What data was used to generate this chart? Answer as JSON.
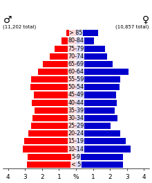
{
  "age_groups": [
    "< 5",
    "5-9",
    "10-14",
    "15-19",
    "20-24",
    "25-29",
    "30-34",
    "35-39",
    "40-44",
    "45-49",
    "50-54",
    "55-59",
    "60-64",
    "65-69",
    "70-74",
    "75-79",
    "80-84",
    "> 85"
  ],
  "male_pct": [
    2.9,
    2.85,
    3.15,
    3.05,
    2.8,
    2.65,
    2.55,
    2.45,
    2.6,
    2.5,
    2.7,
    2.65,
    2.25,
    1.95,
    1.55,
    1.25,
    0.85,
    0.55
  ],
  "female_pct": [
    2.75,
    2.75,
    3.2,
    2.95,
    2.6,
    2.05,
    2.45,
    2.3,
    2.4,
    2.35,
    2.55,
    2.6,
    3.1,
    2.15,
    1.85,
    1.7,
    1.05,
    1.3
  ],
  "male_color": "#FF0000",
  "female_color": "#0000CC",
  "male_symbol": "♂",
  "female_symbol": "♀",
  "male_total": "(11,202 total)",
  "female_total": "(10,857 total)",
  "x_ticks": [
    4,
    3,
    2,
    1,
    0,
    1,
    2,
    3,
    4
  ],
  "xlim": 4.3,
  "bg_color": "#FFFFFF",
  "bar_height": 0.82,
  "tick_fontsize": 6.5,
  "label_fontsize": 5.8
}
